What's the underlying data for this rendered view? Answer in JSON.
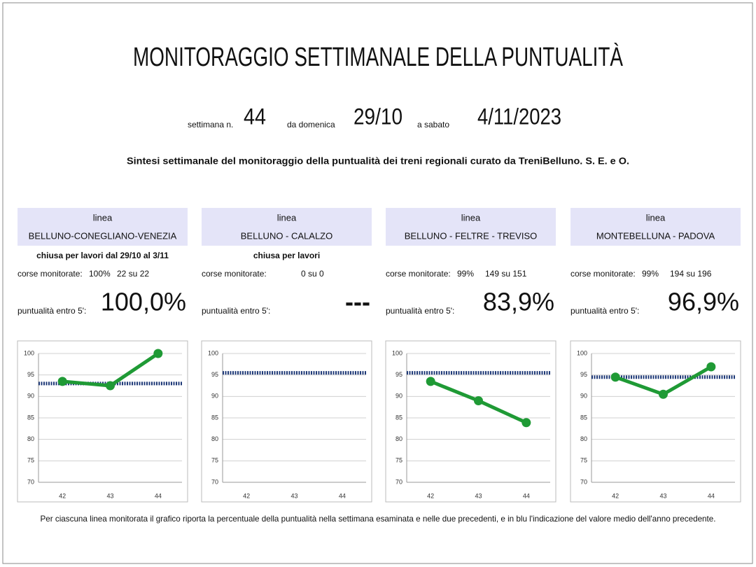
{
  "title": "MONITORAGGIO SETTIMANALE DELLA PUNTUALITÀ",
  "period": {
    "week_label": "settimana n.",
    "week": "44",
    "from_label": "da domenica",
    "from": "29/10",
    "to_label": "a sabato",
    "to": "4/11/2023"
  },
  "subtitle": "Sintesi settimanale del monitoraggio della puntualità dei treni regionali curato da TreniBelluno.   S. E. e O.",
  "panels": [
    {
      "header": "linea",
      "line": "BELLUNO-CONEGLIANO-VENEZIA",
      "note": "chiusa per lavori dal 29/10 al 3/11",
      "monitored_label": "corse monitorate:",
      "monitored_pct": "100%",
      "monitored_count": "22 su 22",
      "punctuality_label": "puntualità entro 5':",
      "punctuality": "100,0%",
      "chart_data": {
        "type": "line",
        "categories": [
          "42",
          "43",
          "44"
        ],
        "values": [
          93.5,
          92.5,
          100
        ],
        "color": "#1f9a35",
        "reference": 93,
        "reference_color": "#1f3a78",
        "ylim": [
          70,
          100
        ],
        "yticks": [
          70,
          75,
          80,
          85,
          90,
          95,
          100
        ],
        "grid": true
      }
    },
    {
      "header": "linea",
      "line": "BELLUNO - CALALZO",
      "note": "chiusa per lavori",
      "monitored_label": "corse monitorate:",
      "monitored_count": "0 su 0",
      "punctuality_label": "puntualità entro 5':",
      "punctuality": "---",
      "chart_data": {
        "type": "line",
        "categories": [
          "42",
          "43",
          "44"
        ],
        "values": [
          null,
          null,
          null
        ],
        "color": "#1f9a35",
        "reference": 95.5,
        "reference_color": "#1f3a78",
        "ylim": [
          70,
          100
        ],
        "yticks": [
          70,
          75,
          80,
          85,
          90,
          95,
          100
        ],
        "grid": true
      }
    },
    {
      "header": "linea",
      "line": "BELLUNO - FELTRE - TREVISO",
      "monitored_label": "corse monitorate:",
      "monitored_pct": "99%",
      "monitored_count": "149 su 151",
      "punctuality_label": "puntualità entro 5':",
      "punctuality": "83,9%",
      "chart_data": {
        "type": "line",
        "categories": [
          "42",
          "43",
          "44"
        ],
        "values": [
          93.5,
          89,
          83.9
        ],
        "color": "#1f9a35",
        "reference": 95.5,
        "reference_color": "#1f3a78",
        "ylim": [
          70,
          100
        ],
        "yticks": [
          70,
          75,
          80,
          85,
          90,
          95,
          100
        ],
        "grid": true
      }
    },
    {
      "header": "linea",
      "line": "MONTEBELLUNA - PADOVA",
      "monitored_label": "corse monitorate:",
      "monitored_pct": "99%",
      "monitored_count": "194 su 196",
      "punctuality_label": "puntualità entro 5':",
      "punctuality": "96,9%",
      "chart_data": {
        "type": "line",
        "categories": [
          "42",
          "43",
          "44"
        ],
        "values": [
          94.5,
          90.5,
          96.9
        ],
        "color": "#1f9a35",
        "reference": 94.5,
        "reference_color": "#1f3a78",
        "ylim": [
          70,
          100
        ],
        "yticks": [
          70,
          75,
          80,
          85,
          90,
          95,
          100
        ],
        "grid": true
      }
    }
  ],
  "footnote": "Per ciascuna linea monitorata il grafico riporta la percentuale della puntualità nella settimana esaminata e nelle due precedenti, e in blu l'indicazione del valore medio dell'anno precedente."
}
